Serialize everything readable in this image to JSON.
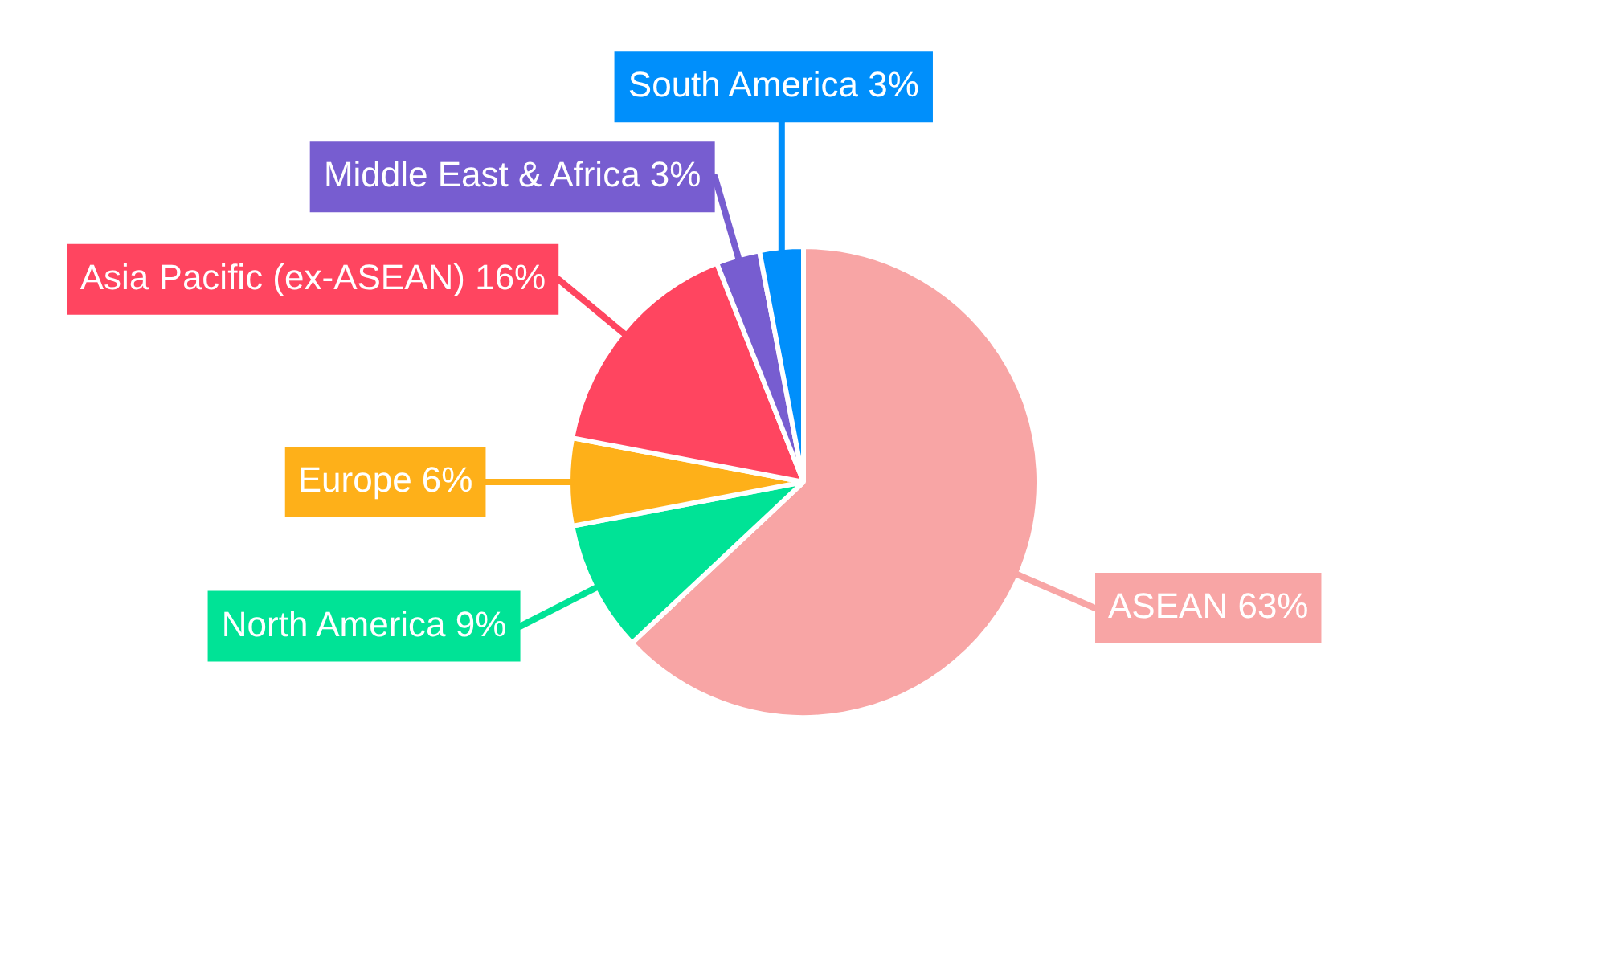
{
  "chart_data": {
    "type": "pie",
    "categories": [
      "ASEAN",
      "North America",
      "Europe",
      "Asia Pacific (ex-ASEAN)",
      "Middle East & Africa",
      "South America"
    ],
    "values": [
      63,
      9,
      6,
      16,
      3,
      3
    ],
    "value_labels": [
      "63%",
      "9%",
      "6%",
      "16%",
      "3%",
      "3%"
    ],
    "colors": [
      "#f8a5a5",
      "#00e396",
      "#feb019",
      "#ff4560",
      "#775dd0",
      "#008ffb"
    ],
    "legend": false
  }
}
